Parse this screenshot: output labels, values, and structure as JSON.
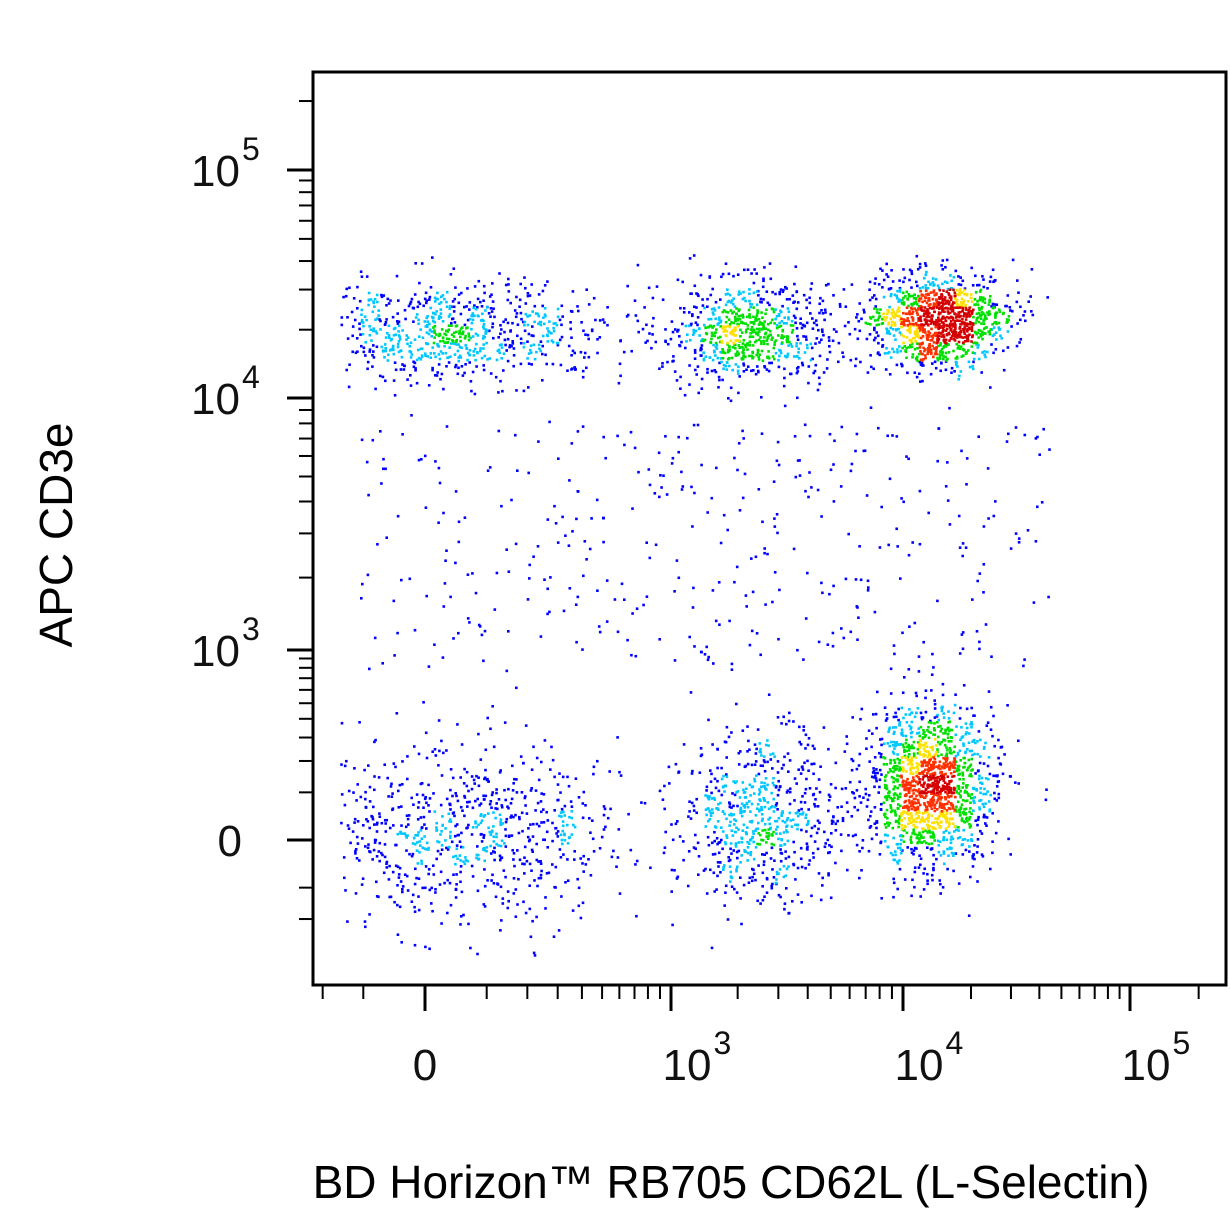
{
  "chart_data": {
    "type": "scatter",
    "subtype": "flow-cytometry-pseudocolor-density",
    "xlabel": "BD Horizon™ RB705 CD62L (L-Selectin)",
    "ylabel": "APC CD3e",
    "x_scale": "biexponential",
    "y_scale": "biexponential",
    "x_ticks": [
      {
        "value": 0,
        "base": "0",
        "exp": ""
      },
      {
        "value": 1000,
        "base": "10",
        "exp": "3"
      },
      {
        "value": 10000,
        "base": "10",
        "exp": "4"
      },
      {
        "value": 100000,
        "base": "10",
        "exp": "5"
      }
    ],
    "y_ticks": [
      {
        "value": 0,
        "base": "0",
        "exp": ""
      },
      {
        "value": 1000,
        "base": "10",
        "exp": "3"
      },
      {
        "value": 10000,
        "base": "10",
        "exp": "4"
      },
      {
        "value": 100000,
        "base": "10",
        "exp": "5"
      }
    ],
    "color_scale": [
      "#0000ff",
      "#00c8ff",
      "#00e000",
      "#ffe000",
      "#ff3000",
      "#d40000"
    ],
    "populations": [
      {
        "x_center": 30,
        "y_center": 20000,
        "x_spread": 400,
        "y_spread": 9000,
        "density": 0.55
      },
      {
        "x_center": 2200,
        "y_center": 20000,
        "x_spread": 2000,
        "y_spread": 9000,
        "density": 0.5
      },
      {
        "x_center": 14000,
        "y_center": 22000,
        "x_spread": 9000,
        "y_spread": 9000,
        "density": 0.8
      },
      {
        "x_center": 50,
        "y_center": 20,
        "x_spread": 500,
        "y_spread": 200,
        "density": 0.6
      },
      {
        "x_center": 2500,
        "y_center": 40,
        "x_spread": 2000,
        "y_spread": 200,
        "density": 0.45
      },
      {
        "x_center": 13000,
        "y_center": 120,
        "x_spread": 8000,
        "y_spread": 250,
        "density": 1.0
      }
    ]
  }
}
